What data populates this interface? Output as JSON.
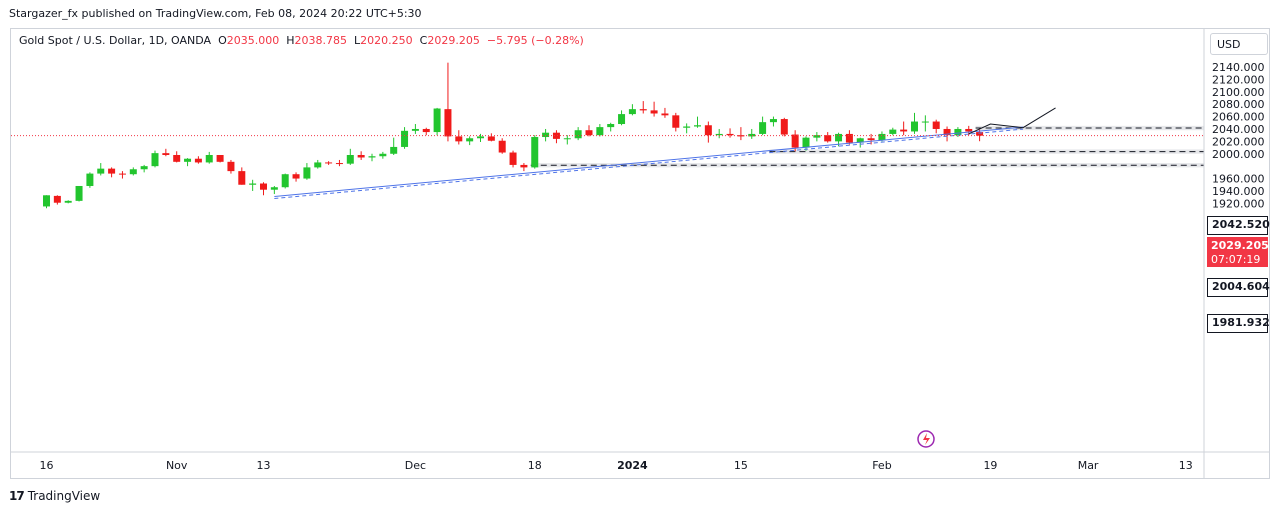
{
  "header": {
    "published_text": "Stargazer_fx published on TradingView.com, Feb 08, 2024 20:22 UTC+5:30"
  },
  "legend": {
    "symbol": "Gold Spot / U.S. Dollar, 1D, OANDA",
    "open_label": "O",
    "open": "2035.000",
    "high_label": "H",
    "high": "2038.785",
    "low_label": "L",
    "low": "2020.250",
    "close_label": "C",
    "close": "2029.205",
    "change": "−5.795 (−0.28%)"
  },
  "currency_button": "USD",
  "price_tags": {
    "resistance": "2042.520",
    "current": "2029.205",
    "countdown": "07:07:19",
    "support_1": "2004.604",
    "support_2": "1981.932"
  },
  "footer": {
    "brand": "TradingView"
  },
  "colors": {
    "up": "#22c52e",
    "down": "#f01a1a",
    "trendline": "#4f74e8",
    "current_price": "#f23645",
    "zone_fill": "#e6e7ea"
  },
  "chart_data": {
    "type": "candlestick",
    "title": "Gold Spot / U.S. Dollar, 1D, OANDA",
    "ylim": [
      1908,
      2150
    ],
    "y_ticks": [
      1920,
      1940,
      1960,
      2000,
      2020,
      2040,
      2060,
      2080,
      2100,
      2120,
      2140
    ],
    "y_tick_labels": [
      "1920.000",
      "1940.000",
      "1960.000",
      "2000.000",
      "2020.000",
      "2040.000",
      "2060.000",
      "2080.000",
      "2100.000",
      "2120.000",
      "2140.000"
    ],
    "x_tick_labels": [
      {
        "label": "16",
        "i": 0
      },
      {
        "label": "Nov",
        "i": 12
      },
      {
        "label": "13",
        "i": 20
      },
      {
        "label": "Dec",
        "i": 34
      },
      {
        "label": "18",
        "i": 45
      },
      {
        "label": "2024",
        "i": 54
      },
      {
        "label": "15",
        "i": 64
      },
      {
        "label": "Feb",
        "i": 77
      },
      {
        "label": "19",
        "i": 87
      },
      {
        "label": "Mar",
        "i": 96
      },
      {
        "label": "13",
        "i": 105
      }
    ],
    "grid": false,
    "candles": [
      [
        1915,
        1933,
        1912,
        1933
      ],
      [
        1932,
        1933,
        1918,
        1921
      ],
      [
        1921,
        1925,
        1920,
        1924
      ],
      [
        1924,
        1948,
        1923,
        1948
      ],
      [
        1948,
        1970,
        1945,
        1968
      ],
      [
        1968,
        1985,
        1965,
        1976
      ],
      [
        1976,
        1978,
        1962,
        1968
      ],
      [
        1968,
        1972,
        1960,
        1967
      ],
      [
        1967,
        1978,
        1965,
        1975
      ],
      [
        1975,
        1982,
        1970,
        1980
      ],
      [
        1980,
        2005,
        1978,
        2001
      ],
      [
        2001,
        2008,
        1996,
        1998
      ],
      [
        1998,
        2004,
        1986,
        1987
      ],
      [
        1987,
        1993,
        1980,
        1992
      ],
      [
        1992,
        1996,
        1984,
        1986
      ],
      [
        1986,
        2003,
        1984,
        1998
      ],
      [
        1998,
        1998,
        1986,
        1987
      ],
      [
        1987,
        1990,
        1968,
        1972
      ],
      [
        1972,
        1978,
        1950,
        1950
      ],
      [
        1950,
        1958,
        1940,
        1952
      ],
      [
        1952,
        1954,
        1933,
        1942
      ],
      [
        1942,
        1948,
        1935,
        1946
      ],
      [
        1946,
        1968,
        1944,
        1967
      ],
      [
        1967,
        1970,
        1955,
        1960
      ],
      [
        1960,
        1985,
        1958,
        1978
      ],
      [
        1978,
        1990,
        1976,
        1986
      ],
      [
        1986,
        1988,
        1982,
        1985
      ],
      [
        1985,
        1990,
        1980,
        1984
      ],
      [
        1984,
        2008,
        1982,
        1998
      ],
      [
        1998,
        2004,
        1990,
        1994
      ],
      [
        1994,
        2000,
        1988,
        1996
      ],
      [
        1996,
        2003,
        1992,
        2000
      ],
      [
        2000,
        2026,
        1998,
        2011
      ],
      [
        2011,
        2043,
        2008,
        2037
      ],
      [
        2037,
        2048,
        2032,
        2040
      ],
      [
        2040,
        2042,
        2030,
        2035
      ],
      [
        2035,
        2074,
        2030,
        2073
      ],
      [
        2072,
        2147,
        2020,
        2028
      ],
      [
        2028,
        2038,
        2015,
        2020
      ],
      [
        2020,
        2028,
        2014,
        2025
      ],
      [
        2025,
        2032,
        2019,
        2028
      ],
      [
        2028,
        2033,
        2020,
        2021
      ],
      [
        2021,
        2025,
        2000,
        2002
      ],
      [
        2002,
        2005,
        1978,
        1982
      ],
      [
        1982,
        1985,
        1972,
        1978
      ],
      [
        1978,
        2030,
        1976,
        2027
      ],
      [
        2027,
        2040,
        2020,
        2034
      ],
      [
        2034,
        2038,
        2017,
        2024
      ],
      [
        2024,
        2030,
        2015,
        2025
      ],
      [
        2025,
        2043,
        2022,
        2038
      ],
      [
        2038,
        2046,
        2028,
        2030
      ],
      [
        2030,
        2048,
        2028,
        2043
      ],
      [
        2043,
        2050,
        2036,
        2048
      ],
      [
        2048,
        2070,
        2046,
        2064
      ],
      [
        2064,
        2080,
        2062,
        2072
      ],
      [
        2072,
        2085,
        2065,
        2070
      ],
      [
        2070,
        2084,
        2060,
        2065
      ],
      [
        2065,
        2074,
        2058,
        2062
      ],
      [
        2062,
        2066,
        2036,
        2042
      ],
      [
        2042,
        2049,
        2033,
        2044
      ],
      [
        2044,
        2060,
        2042,
        2046
      ],
      [
        2046,
        2052,
        2018,
        2030
      ],
      [
        2030,
        2040,
        2025,
        2032
      ],
      [
        2032,
        2041,
        2026,
        2030
      ],
      [
        2030,
        2043,
        2022,
        2028
      ],
      [
        2028,
        2040,
        2024,
        2032
      ],
      [
        2032,
        2060,
        2030,
        2051
      ],
      [
        2051,
        2060,
        2044,
        2056
      ],
      [
        2056,
        2058,
        2028,
        2031
      ],
      [
        2031,
        2038,
        2004,
        2010
      ],
      [
        2010,
        2028,
        2005,
        2026
      ],
      [
        2026,
        2035,
        2020,
        2030
      ],
      [
        2030,
        2035,
        2018,
        2020
      ],
      [
        2020,
        2034,
        2012,
        2032
      ],
      [
        2032,
        2038,
        2015,
        2018
      ],
      [
        2018,
        2026,
        2010,
        2025
      ],
      [
        2025,
        2032,
        2015,
        2022
      ],
      [
        2022,
        2036,
        2020,
        2032
      ],
      [
        2032,
        2042,
        2030,
        2039
      ],
      [
        2039,
        2052,
        2030,
        2036
      ],
      [
        2036,
        2066,
        2032,
        2052
      ],
      [
        2052,
        2062,
        2036,
        2052
      ],
      [
        2052,
        2055,
        2033,
        2040
      ],
      [
        2040,
        2044,
        2020,
        2030
      ],
      [
        2030,
        2043,
        2027,
        2040
      ],
      [
        2040,
        2045,
        2030,
        2036
      ],
      [
        2035,
        2038.785,
        2020.25,
        2029.205
      ]
    ],
    "trendline": {
      "from": {
        "i": 21,
        "price": 1931
      },
      "to": {
        "i": 90,
        "price": 2043
      }
    },
    "zones": [
      {
        "label": "2042.520",
        "top": 2045,
        "bottom": 2038,
        "from_i": 86
      },
      {
        "label": "2004.604",
        "top": 2007,
        "bottom": 2000,
        "from_i": 67
      },
      {
        "label": "1981.932",
        "top": 1985,
        "bottom": 1978,
        "from_i": 45
      }
    ],
    "current_price": 2029.205,
    "projection": [
      {
        "i": 85,
        "price": 2032
      },
      {
        "i": 87,
        "price": 2048
      },
      {
        "i": 90,
        "price": 2042
      },
      {
        "i": 93,
        "price": 2074
      }
    ]
  }
}
